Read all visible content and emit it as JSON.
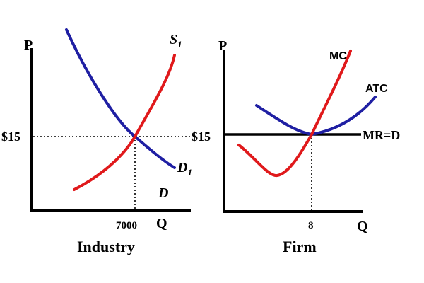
{
  "industry": {
    "y_axis_label": "P",
    "x_axis_label": "Q",
    "price_label": "$15",
    "quantity_label": "7000",
    "supply_label": "S",
    "supply_subscript": "1",
    "demand_label": "D",
    "demand_subscript": "1",
    "d_label": "D",
    "title": "Industry"
  },
  "firm": {
    "y_axis_label": "P",
    "x_axis_label": "Q",
    "price_label": "$15",
    "quantity_label": "8",
    "mc_label": "MC",
    "atc_label": "ATC",
    "mr_label": "MR=D",
    "title": "Firm"
  },
  "colors": {
    "supply_mc": "#e0191b",
    "demand_atc": "#1f1fa3",
    "axes": "#000000"
  }
}
